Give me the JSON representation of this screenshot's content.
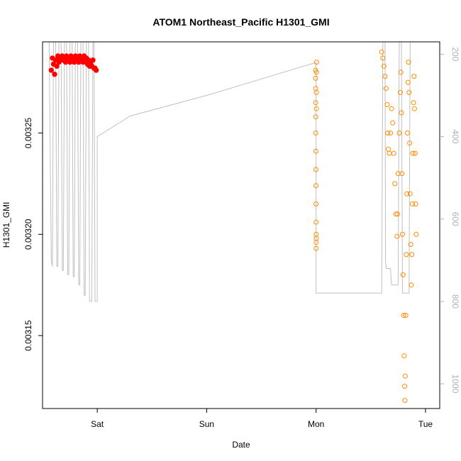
{
  "colors": {
    "saturday_points": "#ff0000",
    "later_points": "#ff8c00",
    "depth_line": "#c0c0c0",
    "axis": "#000000",
    "right_axis": "#b0b0b0"
  },
  "chart_data": {
    "type": "scatter",
    "title": "ATOM1 Northeast_Pacific H1301_GMI",
    "xlabel": "Date",
    "ylabel": "H1301_GMI",
    "x_ticks": [
      "Sat",
      "Sun",
      "Mon",
      "Tue"
    ],
    "x_unit": "days",
    "xlim": [
      -0.5,
      3.13
    ],
    "ylim": [
      0.003114,
      0.003295
    ],
    "y_ticks": [
      0.00315,
      0.0032,
      0.00325
    ],
    "y_tick_labels": [
      "0.00315",
      "0.00320",
      "0.00325"
    ],
    "right_axis": {
      "label": "",
      "reversed": true,
      "range": [
        1060,
        170
      ],
      "ticks": [
        200,
        400,
        600,
        800,
        1000
      ]
    },
    "series": [
      {
        "name": "",
        "marker": "filled-circle",
        "color_key": "saturday_points",
        "values": [
          [
            -0.42,
            0.003281
          ],
          [
            -0.41,
            0.003287
          ],
          [
            -0.4,
            0.003284
          ],
          [
            -0.39,
            0.003279
          ],
          [
            -0.38,
            0.003286
          ],
          [
            -0.37,
            0.003283
          ],
          [
            -0.36,
            0.003288
          ],
          [
            -0.35,
            0.003285
          ],
          [
            -0.34,
            0.003287
          ],
          [
            -0.33,
            0.003286
          ],
          [
            -0.32,
            0.003288
          ],
          [
            -0.31,
            0.003286
          ],
          [
            -0.3,
            0.003287
          ],
          [
            -0.29,
            0.003285
          ],
          [
            -0.28,
            0.003288
          ],
          [
            -0.27,
            0.003286
          ],
          [
            -0.26,
            0.003287
          ],
          [
            -0.25,
            0.003285
          ],
          [
            -0.24,
            0.003288
          ],
          [
            -0.23,
            0.003286
          ],
          [
            -0.22,
            0.003287
          ],
          [
            -0.21,
            0.003285
          ],
          [
            -0.2,
            0.003288
          ],
          [
            -0.19,
            0.003286
          ],
          [
            -0.18,
            0.003287
          ],
          [
            -0.17,
            0.003285
          ],
          [
            -0.16,
            0.003288
          ],
          [
            -0.15,
            0.003286
          ],
          [
            -0.14,
            0.003287
          ],
          [
            -0.13,
            0.003285
          ],
          [
            -0.12,
            0.003288
          ],
          [
            -0.11,
            0.003286
          ],
          [
            -0.1,
            0.003287
          ],
          [
            -0.09,
            0.003284
          ],
          [
            -0.08,
            0.003286
          ],
          [
            -0.07,
            0.003283
          ],
          [
            -0.06,
            0.003285
          ],
          [
            -0.05,
            0.003283
          ],
          [
            -0.04,
            0.003286
          ],
          [
            -0.03,
            0.003282
          ],
          [
            -0.02,
            0.003282
          ],
          [
            -0.01,
            0.003281
          ]
        ]
      },
      {
        "name": "",
        "marker": "open-circle",
        "color_key": "later_points",
        "values": [
          [
            1.995,
            0.003281
          ],
          [
            1.995,
            0.003277
          ],
          [
            1.996,
            0.003272
          ],
          [
            1.996,
            0.003265
          ],
          [
            1.997,
            0.003258
          ],
          [
            1.997,
            0.00325
          ],
          [
            1.998,
            0.003241
          ],
          [
            1.998,
            0.003232
          ],
          [
            1.999,
            0.003224
          ],
          [
            1.999,
            0.003215
          ],
          [
            2.0,
            0.003206
          ],
          [
            2.0,
            0.0032
          ],
          [
            2.0,
            0.003196
          ],
          [
            2.001,
            0.003193
          ],
          [
            2.002,
            0.003198
          ],
          [
            2.003,
            0.003262
          ],
          [
            2.003,
            0.00327
          ],
          [
            2.004,
            0.00328
          ],
          [
            2.004,
            0.003285
          ],
          [
            2.6,
            0.00329
          ],
          [
            2.61,
            0.003287
          ],
          [
            2.62,
            0.003283
          ],
          [
            2.63,
            0.003278
          ],
          [
            2.64,
            0.003272
          ],
          [
            2.65,
            0.003264
          ],
          [
            2.655,
            0.00325
          ],
          [
            2.66,
            0.003242
          ],
          [
            2.67,
            0.00324
          ],
          [
            2.68,
            0.00325
          ],
          [
            2.69,
            0.003262
          ],
          [
            2.7,
            0.003255
          ],
          [
            2.71,
            0.00324
          ],
          [
            2.72,
            0.003225
          ],
          [
            2.73,
            0.00321
          ],
          [
            2.74,
            0.003199
          ],
          [
            2.745,
            0.00321
          ],
          [
            2.75,
            0.00323
          ],
          [
            2.76,
            0.00325
          ],
          [
            2.77,
            0.00327
          ],
          [
            2.775,
            0.00328
          ],
          [
            2.78,
            0.00326
          ],
          [
            2.785,
            0.00323
          ],
          [
            2.79,
            0.0032
          ],
          [
            2.795,
            0.00318
          ],
          [
            2.8,
            0.00316
          ],
          [
            2.805,
            0.00314
          ],
          [
            2.81,
            0.003125
          ],
          [
            2.812,
            0.003118
          ],
          [
            2.815,
            0.00313
          ],
          [
            2.82,
            0.00316
          ],
          [
            2.825,
            0.00319
          ],
          [
            2.83,
            0.00322
          ],
          [
            2.835,
            0.00325
          ],
          [
            2.84,
            0.003275
          ],
          [
            2.845,
            0.003285
          ],
          [
            2.85,
            0.00327
          ],
          [
            2.855,
            0.003245
          ],
          [
            2.86,
            0.00322
          ],
          [
            2.865,
            0.003195
          ],
          [
            2.87,
            0.003175
          ],
          [
            2.875,
            0.00319
          ],
          [
            2.88,
            0.003215
          ],
          [
            2.885,
            0.00324
          ],
          [
            2.89,
            0.003265
          ],
          [
            2.895,
            0.003278
          ],
          [
            2.9,
            0.003262
          ],
          [
            2.905,
            0.00324
          ],
          [
            2.91,
            0.003215
          ],
          [
            2.915,
            0.0032
          ]
        ]
      }
    ],
    "depth_line": {
      "name": "",
      "axis": "right",
      "values": [
        [
          -0.44,
          170
        ],
        [
          -0.42,
          700
        ],
        [
          -0.41,
          715
        ],
        [
          -0.4,
          170
        ],
        [
          -0.38,
          170
        ],
        [
          -0.37,
          715
        ],
        [
          -0.36,
          715
        ],
        [
          -0.35,
          170
        ],
        [
          -0.33,
          170
        ],
        [
          -0.32,
          725
        ],
        [
          -0.31,
          725
        ],
        [
          -0.3,
          170
        ],
        [
          -0.28,
          170
        ],
        [
          -0.27,
          735
        ],
        [
          -0.26,
          735
        ],
        [
          -0.25,
          170
        ],
        [
          -0.23,
          170
        ],
        [
          -0.22,
          740
        ],
        [
          -0.21,
          740
        ],
        [
          -0.2,
          170
        ],
        [
          -0.18,
          170
        ],
        [
          -0.17,
          760
        ],
        [
          -0.16,
          760
        ],
        [
          -0.15,
          170
        ],
        [
          -0.13,
          170
        ],
        [
          -0.12,
          785
        ],
        [
          -0.11,
          785
        ],
        [
          -0.1,
          170
        ],
        [
          -0.08,
          170
        ],
        [
          -0.07,
          800
        ],
        [
          -0.05,
          800
        ],
        [
          -0.04,
          170
        ],
        [
          -0.03,
          170
        ],
        [
          -0.02,
          800
        ],
        [
          0.0,
          800
        ],
        [
          0.0,
          400
        ],
        [
          0.3,
          350
        ],
        [
          1.0,
          300
        ],
        [
          1.5,
          260
        ],
        [
          2.0,
          220
        ],
        [
          2.0,
          780
        ],
        [
          2.2,
          780
        ],
        [
          2.6,
          780
        ],
        [
          2.61,
          170
        ],
        [
          2.63,
          170
        ],
        [
          2.635,
          700
        ],
        [
          2.64,
          720
        ],
        [
          2.68,
          720
        ],
        [
          2.69,
          760
        ],
        [
          2.75,
          760
        ],
        [
          2.76,
          170
        ],
        [
          2.78,
          170
        ],
        [
          2.79,
          780
        ],
        [
          2.85,
          780
        ],
        [
          2.86,
          170
        ],
        [
          3.0,
          170
        ]
      ]
    }
  }
}
